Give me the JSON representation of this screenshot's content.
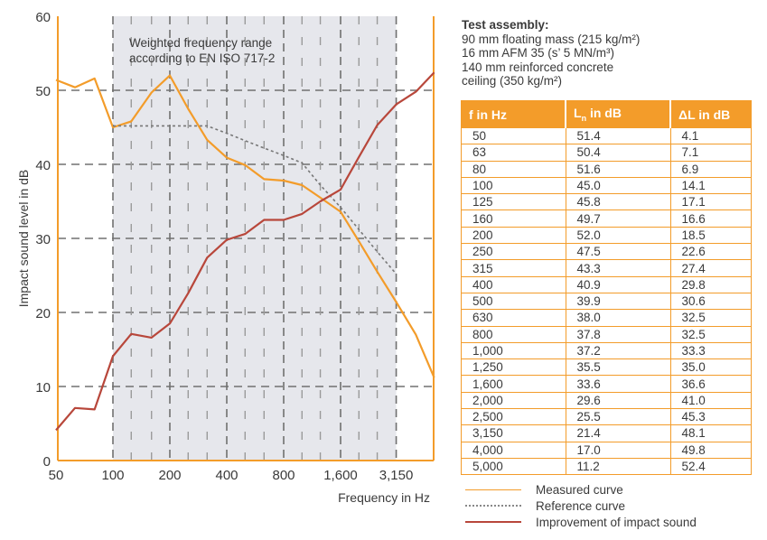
{
  "chart_data": {
    "type": "line",
    "ylabel": "Impact sound level in dB",
    "xlabel": "Frequency in Hz",
    "ylim": [
      0,
      60
    ],
    "yticks": [
      0,
      10,
      20,
      30,
      40,
      50,
      60
    ],
    "xticks": [
      "50",
      "100",
      "200",
      "400",
      "800",
      "1,600",
      "3,150"
    ],
    "log_x": true,
    "grid": true,
    "shaded_band": {
      "from_hz": 100,
      "to_hz": 3150,
      "label_line1": "Weighted frequency range",
      "label_line2": "according to EN ISO 717-2"
    },
    "x": [
      50,
      63,
      80,
      100,
      125,
      160,
      200,
      250,
      315,
      400,
      500,
      630,
      800,
      1000,
      1250,
      1600,
      2000,
      2500,
      3150,
      4000,
      5000
    ],
    "series": [
      {
        "name": "Measured curve",
        "color": "#f39c2a",
        "style": "solid",
        "values": [
          51.4,
          50.4,
          51.6,
          45.0,
          45.8,
          49.7,
          52.0,
          47.5,
          43.3,
          40.9,
          39.9,
          38.0,
          37.8,
          37.2,
          35.5,
          33.6,
          29.6,
          25.5,
          21.4,
          17.0,
          11.2
        ]
      },
      {
        "name": "Reference curve",
        "color": "#777777",
        "style": "dotted",
        "x": [
          100,
          125,
          160,
          200,
          250,
          315,
          400,
          500,
          630,
          800,
          1000,
          1250,
          1600,
          2000,
          2500,
          3150
        ],
        "values": [
          45.2,
          45.2,
          45.2,
          45.2,
          45.2,
          45.2,
          44.2,
          43.2,
          42.2,
          41.2,
          40.2,
          37.2,
          34.2,
          31.2,
          28.2,
          25.2
        ]
      },
      {
        "name": "Improvement of impact sound",
        "color": "#b8473b",
        "style": "solid",
        "values": [
          4.1,
          7.1,
          6.9,
          14.1,
          17.1,
          16.6,
          18.5,
          22.6,
          27.4,
          29.8,
          30.6,
          32.5,
          32.5,
          33.3,
          35.0,
          36.6,
          41.0,
          45.3,
          48.1,
          49.8,
          52.4
        ]
      }
    ]
  },
  "assembly": {
    "head": "Test assembly:",
    "line1": "90 mm floating mass (215 kg/m²)",
    "line2": "16 mm AFM 35 (s’ 5 MN/m³)",
    "line3": "140 mm reinforced concrete",
    "line4": "ceiling (350 kg/m²)"
  },
  "table": {
    "col1": "f in Hz",
    "col2_main": "L",
    "col2_sub": "n",
    "col2_rest": " in dB",
    "col3": "ΔL in dB",
    "rows": [
      [
        "50",
        "51.4",
        "4.1"
      ],
      [
        "63",
        "50.4",
        "7.1"
      ],
      [
        "80",
        "51.6",
        "6.9"
      ],
      [
        "100",
        "45.0",
        "14.1"
      ],
      [
        "125",
        "45.8",
        "17.1"
      ],
      [
        "160",
        "49.7",
        "16.6"
      ],
      [
        "200",
        "52.0",
        "18.5"
      ],
      [
        "250",
        "47.5",
        "22.6"
      ],
      [
        "315",
        "43.3",
        "27.4"
      ],
      [
        "400",
        "40.9",
        "29.8"
      ],
      [
        "500",
        "39.9",
        "30.6"
      ],
      [
        "630",
        "38.0",
        "32.5"
      ],
      [
        "800",
        "37.8",
        "32.5"
      ],
      [
        "1,000",
        "37.2",
        "33.3"
      ],
      [
        "1,250",
        "35.5",
        "35.0"
      ],
      [
        "1,600",
        "33.6",
        "36.6"
      ],
      [
        "2,000",
        "29.6",
        "41.0"
      ],
      [
        "2,500",
        "25.5",
        "45.3"
      ],
      [
        "3,150",
        "21.4",
        "48.1"
      ],
      [
        "4,000",
        "17.0",
        "49.8"
      ],
      [
        "5,000",
        "11.2",
        "52.4"
      ]
    ]
  },
  "legend": {
    "measured": "Measured curve",
    "reference": "Reference curve",
    "improvement": "Improvement of impact sound"
  }
}
